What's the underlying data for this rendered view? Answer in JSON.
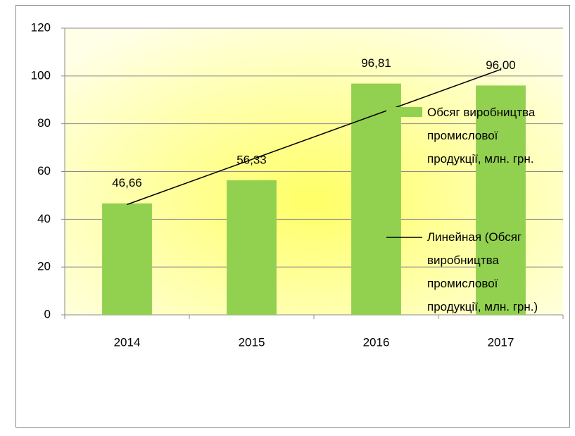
{
  "chart_data": {
    "type": "bar",
    "categories": [
      "2014",
      "2015",
      "2016",
      "2017"
    ],
    "series": [
      {
        "name": "Обсяг виробництва промислової продукції, млн. грн.",
        "type": "bar",
        "color": "#92d050",
        "values": [
          46.66,
          56.33,
          96.81,
          96.0
        ],
        "value_labels": [
          "46,66",
          "56,33",
          "96,81",
          "96,00"
        ]
      },
      {
        "name": "Линейная (Обсяг виробництва промислової продукції, млн. грн.)",
        "type": "line",
        "color": "#000000",
        "values": [
          46.18,
          65.03,
          83.88,
          102.73
        ]
      }
    ],
    "ylim": [
      0,
      120
    ],
    "yticks": [
      0,
      20,
      40,
      60,
      80,
      100,
      120
    ],
    "grid": true,
    "legend": "right"
  }
}
